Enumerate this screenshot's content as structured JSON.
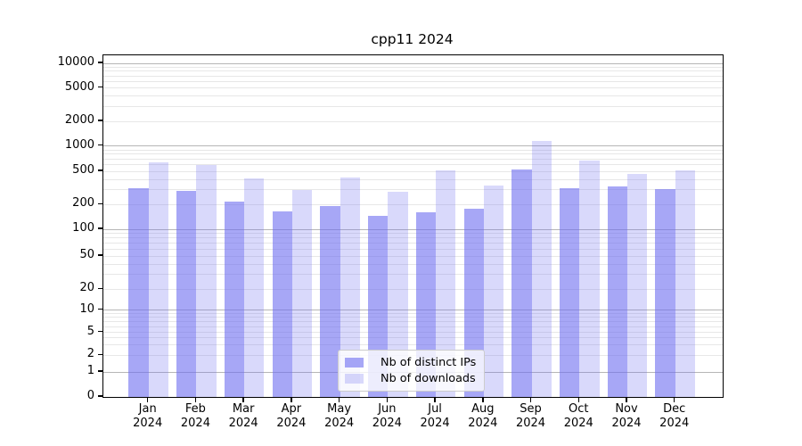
{
  "title": "cpp11 2024",
  "colors": {
    "distinct_ips_bar": "rgba(108,108,240,0.60)",
    "downloads_bar": "rgba(108,108,240,0.26)",
    "major_grid": "#b6b6b6",
    "minor_grid": "#e7e7e7"
  },
  "legend": {
    "items": [
      {
        "label": "Nb of distinct IPs",
        "color": "rgba(108,108,240,0.60)"
      },
      {
        "label": "Nb of downloads",
        "color": "rgba(108,108,240,0.26)"
      }
    ]
  },
  "y_axis": {
    "tick_labels": [
      "10000",
      "5000",
      "2000",
      "1000",
      "500",
      "200",
      "100",
      "50",
      "20",
      "10",
      "5",
      "2",
      "1",
      "0"
    ]
  },
  "x_axis": {
    "months": [
      "Jan",
      "Feb",
      "Mar",
      "Apr",
      "May",
      "Jun",
      "Jul",
      "Aug",
      "Sep",
      "Oct",
      "Nov",
      "Dec"
    ],
    "year": "2024"
  },
  "chart_data": {
    "type": "bar",
    "title": "cpp11 2024",
    "categories": [
      "Jan 2024",
      "Feb 2024",
      "Mar 2024",
      "Apr 2024",
      "May 2024",
      "Jun 2024",
      "Jul 2024",
      "Aug 2024",
      "Sep 2024",
      "Oct 2024",
      "Nov 2024",
      "Dec 2024"
    ],
    "series": [
      {
        "name": "Nb of distinct IPs",
        "values": [
          315,
          290,
          215,
          165,
          190,
          145,
          160,
          180,
          530,
          310,
          330,
          305
        ]
      },
      {
        "name": "Nb of downloads",
        "values": [
          635,
          600,
          410,
          295,
          420,
          285,
          510,
          335,
          1140,
          670,
          470,
          515
        ]
      }
    ],
    "xlabel": "",
    "ylabel": "",
    "yscale": "symlog-like (log decades above 10, compressed below)",
    "ylim": [
      0,
      13000
    ],
    "yticks": [
      10000,
      5000,
      2000,
      1000,
      500,
      200,
      100,
      50,
      20,
      10,
      5,
      2,
      1,
      0
    ],
    "grid": "horizontal major + minor log gridlines",
    "legend_position": "lower center"
  }
}
